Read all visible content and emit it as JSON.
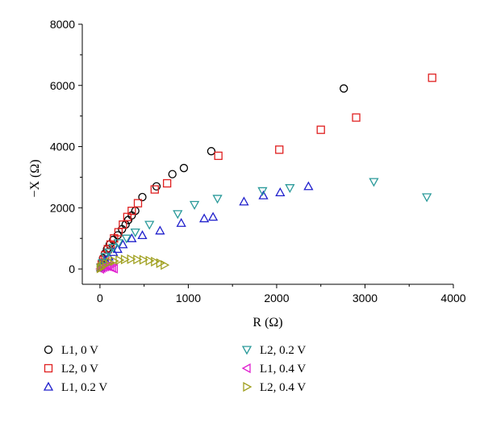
{
  "chart_data": {
    "type": "scatter",
    "xlabel": "R (Ω)",
    "ylabel": "−X (Ω)",
    "xlim": [
      -200,
      4000
    ],
    "ylim": [
      -500,
      8000
    ],
    "xticks": [
      0,
      1000,
      2000,
      3000,
      4000
    ],
    "yticks": [
      0,
      2000,
      4000,
      6000,
      8000
    ],
    "legend_position": "bottom, two columns",
    "series": [
      {
        "name": "L1, 0 V",
        "marker": "circle",
        "color": "#000000",
        "x": [
          10,
          20,
          35,
          55,
          80,
          110,
          150,
          200,
          250,
          290,
          320,
          360,
          400,
          480,
          640,
          820,
          950,
          1260,
          2760
        ],
        "y": [
          80,
          200,
          350,
          500,
          650,
          800,
          950,
          1100,
          1300,
          1450,
          1600,
          1750,
          1900,
          2350,
          2700,
          3100,
          3300,
          3850,
          5900
        ]
      },
      {
        "name": "L2, 0 V",
        "marker": "square",
        "color": "#e02020",
        "x": [
          10,
          20,
          40,
          60,
          90,
          120,
          160,
          210,
          260,
          310,
          360,
          430,
          620,
          760,
          1340,
          2030,
          2500,
          2900,
          3760
        ],
        "y": [
          50,
          150,
          300,
          450,
          650,
          800,
          1000,
          1200,
          1450,
          1700,
          1900,
          2150,
          2600,
          2800,
          3700,
          3900,
          4550,
          4950,
          6250
        ]
      },
      {
        "name": "L1, 0.2 V",
        "marker": "triangle-up",
        "color": "#2020cc",
        "x": [
          10,
          30,
          60,
          100,
          150,
          200,
          260,
          360,
          480,
          680,
          920,
          1180,
          1280,
          1630,
          1850,
          2040,
          2360
        ],
        "y": [
          50,
          150,
          300,
          400,
          550,
          650,
          800,
          1000,
          1100,
          1250,
          1500,
          1650,
          1700,
          2200,
          2400,
          2500,
          2700
        ]
      },
      {
        "name": "L2, 0.2 V",
        "marker": "triangle-down",
        "color": "#2a9a9a",
        "x": [
          10,
          30,
          60,
          100,
          150,
          210,
          300,
          400,
          560,
          880,
          1070,
          1330,
          1840,
          2150,
          3100,
          3700
        ],
        "y": [
          50,
          200,
          400,
          550,
          700,
          850,
          1000,
          1200,
          1450,
          1800,
          2100,
          2300,
          2550,
          2650,
          2850,
          2350
        ]
      },
      {
        "name": "L1, 0.4 V",
        "marker": "triangle-left",
        "color": "#e020d0",
        "x": [
          5,
          20,
          40,
          60,
          80,
          100,
          120,
          140,
          160
        ],
        "y": [
          0,
          30,
          60,
          80,
          90,
          80,
          60,
          30,
          10
        ]
      },
      {
        "name": "L2, 0.4 V",
        "marker": "triangle-right",
        "color": "#a0a020",
        "x": [
          5,
          20,
          40,
          70,
          110,
          160,
          220,
          280,
          350,
          420,
          490,
          560,
          620,
          680,
          730
        ],
        "y": [
          20,
          70,
          120,
          170,
          220,
          260,
          290,
          310,
          320,
          310,
          300,
          270,
          240,
          190,
          130
        ]
      }
    ]
  }
}
